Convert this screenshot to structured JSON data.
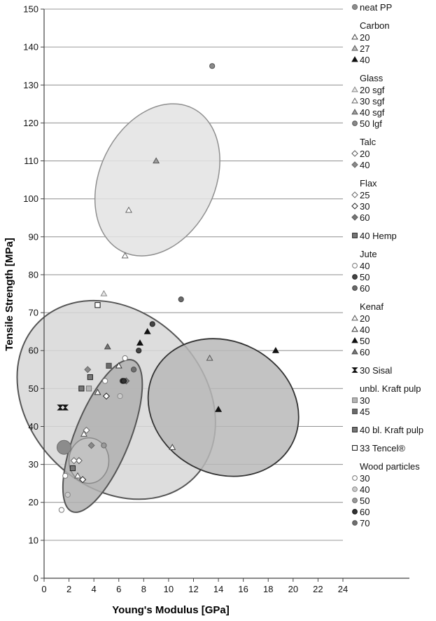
{
  "chart_data": {
    "type": "scatter",
    "xlabel": "Young's Modulus [GPa]",
    "ylabel": "Tensile Strength [MPa]",
    "xlim": [
      0,
      24
    ],
    "ylim": [
      0,
      150
    ],
    "xticks": [
      0,
      2,
      4,
      6,
      8,
      10,
      12,
      14,
      16,
      18,
      20,
      22,
      24
    ],
    "yticks": [
      0,
      10,
      20,
      30,
      40,
      50,
      60,
      70,
      80,
      90,
      100,
      110,
      120,
      130,
      140,
      150
    ],
    "grid": "horizontal",
    "legend": "right",
    "series": [
      {
        "name": "neat PP",
        "group": "",
        "marker": "circle",
        "fill": "#8c8c8c",
        "stroke": "#6e6e6e",
        "points": [
          [
            1.6,
            34.5
          ]
        ],
        "big": true
      },
      {
        "name": "20",
        "group": "Carbon",
        "marker": "triangle",
        "fill": "#ffffff",
        "stroke": "#444444",
        "points": [
          [
            10.3,
            34.5
          ]
        ]
      },
      {
        "name": "27",
        "group": "",
        "marker": "triangle",
        "fill": "#bdbdbd",
        "stroke": "#555555",
        "points": [
          [
            13.3,
            58
          ]
        ]
      },
      {
        "name": "40",
        "group": "",
        "marker": "triangle",
        "fill": "#111111",
        "stroke": "#111111",
        "points": [
          [
            14,
            44.5
          ],
          [
            18.6,
            60
          ]
        ]
      },
      {
        "name": "20 sgf",
        "group": "Glass",
        "marker": "triangle",
        "fill": "#e6e6e6",
        "stroke": "#888888",
        "points": [
          [
            4.8,
            75
          ]
        ]
      },
      {
        "name": "30 sgf",
        "group": "",
        "marker": "triangle",
        "fill": "#ffffff",
        "stroke": "#666666",
        "points": [
          [
            6.5,
            85
          ],
          [
            6.8,
            97
          ]
        ]
      },
      {
        "name": "40 sgf",
        "group": "",
        "marker": "triangle",
        "fill": "#9e9e9e",
        "stroke": "#555555",
        "points": [
          [
            9.0,
            110
          ]
        ]
      },
      {
        "name": "50 lgf",
        "group": "",
        "marker": "circle",
        "fill": "#8a8a8a",
        "stroke": "#555555",
        "points": [
          [
            13.5,
            135
          ]
        ]
      },
      {
        "name": "20",
        "group": "Talc",
        "marker": "diamond",
        "fill": "#ffffff",
        "stroke": "#555555",
        "points": [
          [
            2.8,
            31
          ]
        ]
      },
      {
        "name": "40",
        "group": "",
        "marker": "diamond",
        "fill": "#8a8a8a",
        "stroke": "#666666",
        "points": [
          [
            3.8,
            35
          ],
          [
            3.5,
            55
          ]
        ]
      },
      {
        "name": "25",
        "group": "Flax",
        "marker": "diamond",
        "fill": "#ffffff",
        "stroke": "#666666",
        "points": [
          [
            3.4,
            39
          ],
          [
            2.4,
            31
          ]
        ]
      },
      {
        "name": "30",
        "group": "",
        "marker": "diamond",
        "fill": "#ffffff",
        "stroke": "#222222",
        "points": [
          [
            5.0,
            48
          ],
          [
            3.1,
            26
          ]
        ]
      },
      {
        "name": "60",
        "group": "",
        "marker": "diamond",
        "fill": "#777777",
        "stroke": "#555555",
        "points": [
          [
            6.6,
            52
          ]
        ]
      },
      {
        "name": "40 Hemp",
        "group": "",
        "marker": "square",
        "fill": "#777777",
        "stroke": "#222222",
        "points": [
          [
            3.0,
            50
          ],
          [
            3.7,
            53
          ]
        ]
      },
      {
        "name": "40",
        "group": "Jute",
        "marker": "circle",
        "fill": "#ffffff",
        "stroke": "#777777",
        "points": [
          [
            6.5,
            58
          ],
          [
            4.9,
            52
          ]
        ]
      },
      {
        "name": "50",
        "group": "",
        "marker": "circle",
        "fill": "#444444",
        "stroke": "#222222",
        "points": [
          [
            6.3,
            52
          ],
          [
            7.6,
            60
          ],
          [
            8.7,
            67
          ]
        ]
      },
      {
        "name": "60",
        "group": "",
        "marker": "circle",
        "fill": "#6a6a6a",
        "stroke": "#444444",
        "points": [
          [
            7.2,
            55
          ],
          [
            11.0,
            73.5
          ]
        ]
      },
      {
        "name": "20",
        "group": "Kenaf",
        "marker": "triangle",
        "fill": "#ffffff",
        "stroke": "#555555",
        "points": [
          [
            2.7,
            27
          ],
          [
            3.2,
            38
          ]
        ]
      },
      {
        "name": "40",
        "group": "",
        "marker": "triangle",
        "fill": "#ffffff",
        "stroke": "#333333",
        "points": [
          [
            4.3,
            49
          ],
          [
            6.0,
            56
          ]
        ]
      },
      {
        "name": "50",
        "group": "",
        "marker": "triangle",
        "fill": "#111111",
        "stroke": "#111111",
        "points": [
          [
            7.7,
            62
          ],
          [
            8.3,
            65
          ]
        ]
      },
      {
        "name": "60",
        "group": "",
        "marker": "triangle",
        "fill": "#777777",
        "stroke": "#444444",
        "points": [
          [
            5.1,
            61
          ]
        ]
      },
      {
        "name": "30 Sisal",
        "group": "",
        "marker": "hourglass",
        "fill": "#111111",
        "stroke": "#111111",
        "points": [
          [
            1.3,
            45
          ],
          [
            1.7,
            45
          ]
        ]
      },
      {
        "name": "30",
        "group": "unbl. Kraft pulp",
        "marker": "square",
        "fill": "#b5b5b5",
        "stroke": "#777777",
        "points": [
          [
            3.6,
            50
          ]
        ]
      },
      {
        "name": "45",
        "group": "",
        "marker": "square",
        "fill": "#6a6a6a",
        "stroke": "#444444",
        "points": [
          [
            5.2,
            56
          ]
        ]
      },
      {
        "name": "40 bl. Kraft pulp",
        "group": "",
        "marker": "square",
        "fill": "#777777",
        "stroke": "#222222",
        "points": [
          [
            2.3,
            29
          ]
        ]
      },
      {
        "name": "33 Tencel®",
        "group": "",
        "marker": "square",
        "fill": "#ffffff",
        "stroke": "#111111",
        "points": [
          [
            4.3,
            72
          ]
        ]
      },
      {
        "name": "30",
        "group": "Wood particles",
        "marker": "circle",
        "fill": "#ffffff",
        "stroke": "#777777",
        "points": [
          [
            1.4,
            18
          ],
          [
            1.7,
            27
          ]
        ]
      },
      {
        "name": "40",
        "group": "",
        "marker": "circle",
        "fill": "#cccccc",
        "stroke": "#888888",
        "points": [
          [
            1.9,
            22
          ],
          [
            6.1,
            48
          ]
        ]
      },
      {
        "name": "50",
        "group": "",
        "marker": "circle",
        "fill": "#9a9a9a",
        "stroke": "#666666",
        "points": [
          [
            4.8,
            35
          ]
        ]
      },
      {
        "name": "60",
        "group": "",
        "marker": "circle",
        "fill": "#333333",
        "stroke": "#111111",
        "points": [
          [
            6.4,
            52
          ]
        ]
      },
      {
        "name": "70",
        "group": "",
        "marker": "circle",
        "fill": "#6e6e6e",
        "stroke": "#555555",
        "points": [
          [
            7.2,
            55
          ]
        ]
      }
    ],
    "regions": [
      {
        "cx": 9.1,
        "cy": 105,
        "rx": 6.4,
        "ry": 15.2,
        "angle": -64,
        "fill": "#e3e3e3",
        "stroke": "#8f8f8f",
        "width": 1.5
      },
      {
        "cx": 5.8,
        "cy": 47,
        "rx": 7.0,
        "ry": 29,
        "angle": -45,
        "fill": "#d7d7d7",
        "stroke": "#555555",
        "width": 2
      },
      {
        "cx": 14.4,
        "cy": 45,
        "rx": 5.3,
        "ry": 20.5,
        "angle": -62,
        "fill": "#b9b9b9",
        "stroke": "#333333",
        "width": 1.8
      },
      {
        "cx": 4.7,
        "cy": 37.5,
        "rx": 2.2,
        "ry": 21.5,
        "angle": 22,
        "fill": "#b0b0b0",
        "stroke": "#555555",
        "width": 2
      },
      {
        "cx": 3.6,
        "cy": 31,
        "rx": 1.6,
        "ry": 6,
        "angle": 0,
        "fill": "#c4c4c4",
        "stroke": "#8a8a8a",
        "width": 1.5
      }
    ]
  }
}
